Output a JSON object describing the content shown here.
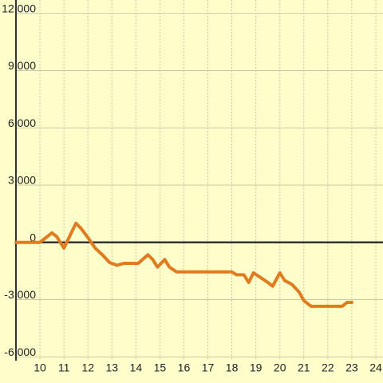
{
  "chart_data": {
    "type": "line",
    "x": [
      9,
      10,
      10.5,
      10.7,
      11,
      11.5,
      11.7,
      12,
      12.3,
      12.6,
      12.9,
      13.2,
      13.5,
      14.1,
      14.5,
      14.7,
      14.9,
      15.2,
      15.4,
      15.7,
      18,
      18.2,
      18.5,
      18.7,
      18.9,
      19.2,
      19.5,
      19.7,
      20,
      20.2,
      20.5,
      20.8,
      21,
      21.3,
      22.6,
      22.8,
      23
    ],
    "series": [
      {
        "color": "#e07b20",
        "values": [
          0,
          0,
          500,
          300,
          -300,
          1000,
          750,
          250,
          -300,
          -650,
          -1050,
          -1200,
          -1100,
          -1100,
          -650,
          -900,
          -1300,
          -900,
          -1300,
          -1550,
          -1550,
          -1700,
          -1700,
          -2100,
          -1600,
          -1850,
          -2100,
          -2300,
          -1600,
          -2000,
          -2200,
          -2600,
          -3050,
          -3350,
          -3350,
          -3150,
          -3150
        ]
      }
    ],
    "xlim": [
      9,
      24.3
    ],
    "xticks": [
      10,
      11,
      12,
      13,
      14,
      15,
      16,
      17,
      18,
      19,
      20,
      21,
      22,
      23,
      24
    ],
    "ylim": [
      -6200,
      12700
    ],
    "yticks": [
      {
        "value": -6000,
        "label": "-6,000"
      },
      {
        "value": -3000,
        "label": "-3,000"
      },
      0,
      {
        "value": 3000,
        "label": "3,000"
      },
      {
        "value": 6000,
        "label": "6,000"
      },
      {
        "value": 9000,
        "label": "9,000"
      },
      {
        "value": 12000,
        "label": "12,000"
      }
    ],
    "grid": true
  }
}
